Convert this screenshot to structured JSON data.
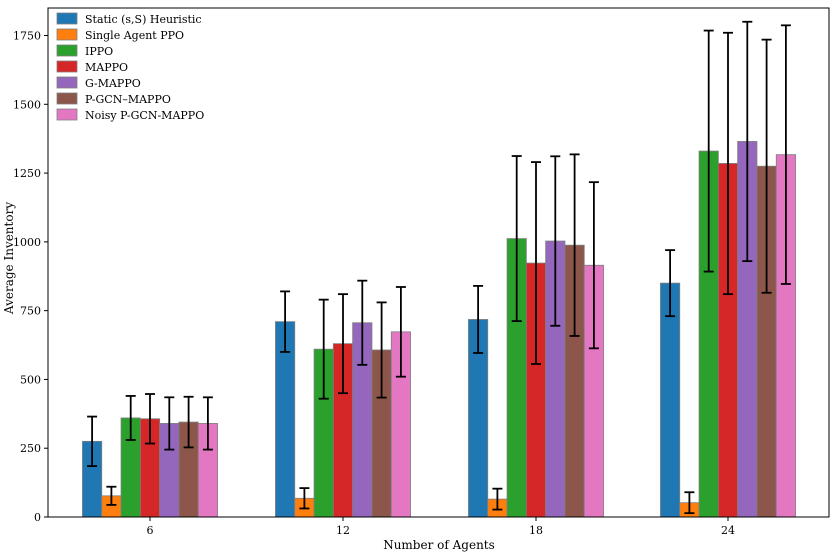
{
  "chart_data": {
    "type": "bar",
    "title": "",
    "xlabel": "Number of Agents",
    "ylabel": "Average Inventory",
    "categories": [
      "6",
      "12",
      "18",
      "24"
    ],
    "ylim": [
      0,
      1850
    ],
    "yticks": [
      0,
      250,
      500,
      750,
      1000,
      1250,
      1500,
      1750
    ],
    "legend_position": "top-left",
    "grid": false,
    "series": [
      {
        "name": "Static (s,S) Heuristic",
        "color": "#1f77b4",
        "values": [
          275,
          710,
          718,
          850
        ],
        "err": [
          90,
          110,
          122,
          120
        ]
      },
      {
        "name": "Single Agent PPO",
        "color": "#ff7f0e",
        "values": [
          77,
          68,
          65,
          52
        ],
        "err": [
          33,
          37,
          38,
          38
        ]
      },
      {
        "name": "IPPO",
        "color": "#2ca02c",
        "values": [
          360,
          610,
          1012,
          1330
        ],
        "err": [
          80,
          180,
          300,
          438
        ]
      },
      {
        "name": "MAPPO",
        "color": "#d62728",
        "values": [
          357,
          630,
          923,
          1285
        ],
        "err": [
          90,
          180,
          367,
          475
        ]
      },
      {
        "name": "G-MAPPO",
        "color": "#9467bd",
        "values": [
          340,
          706,
          1003,
          1365
        ],
        "err": [
          95,
          153,
          308,
          435
        ]
      },
      {
        "name": "P-GCN–MAPPO",
        "color": "#8c564b",
        "values": [
          345,
          607,
          988,
          1275
        ],
        "err": [
          92,
          173,
          330,
          460
        ]
      },
      {
        "name": "Noisy P-GCN-MAPPO",
        "color": "#e377c2",
        "values": [
          340,
          673,
          915,
          1317
        ],
        "err": [
          95,
          163,
          302,
          470
        ]
      }
    ]
  }
}
